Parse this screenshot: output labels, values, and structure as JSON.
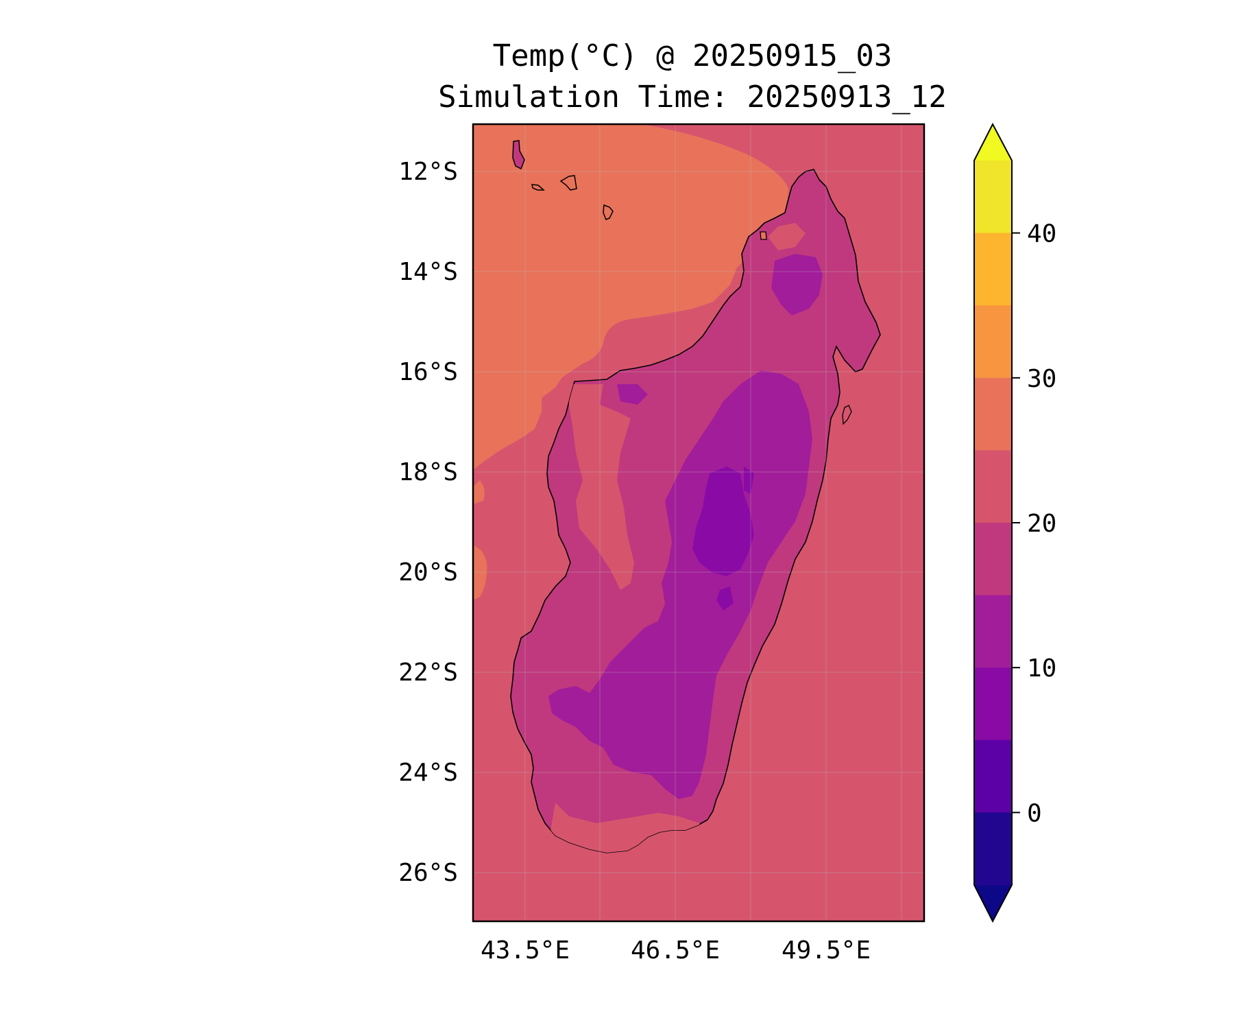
{
  "figure": {
    "title_line1": "Temp(°C) @ 20250915_03",
    "title_line2": "Simulation Time: 20250913_12"
  },
  "map": {
    "y_ticks": [
      "12°S",
      "14°S",
      "16°S",
      "18°S",
      "20°S",
      "22°S",
      "24°S",
      "26°S"
    ],
    "x_ticks": [
      "43.5°E",
      "46.5°E",
      "49.5°E"
    ],
    "ocean_color": "#d6556d",
    "warm_sea_color": "#e8735a",
    "land_colors": [
      "#c0397e",
      "#a21d9a",
      "#8a0aa5"
    ],
    "coastline_color": "#000000"
  },
  "colorbar": {
    "tick_labels": [
      "40",
      "30",
      "20",
      "10",
      "0"
    ],
    "extend": "both",
    "bins": [
      {
        "from": 40,
        "to": 45,
        "color": "#f0e52a"
      },
      {
        "from": 35,
        "to": 40,
        "color": "#fdb42f"
      },
      {
        "from": 30,
        "to": 35,
        "color": "#f89540"
      },
      {
        "from": 25,
        "to": 30,
        "color": "#e8735a"
      },
      {
        "from": 20,
        "to": 25,
        "color": "#d6556d"
      },
      {
        "from": 15,
        "to": 20,
        "color": "#c0397e"
      },
      {
        "from": 10,
        "to": 15,
        "color": "#a21d9a"
      },
      {
        "from": 5,
        "to": 10,
        "color": "#8a0aa5"
      },
      {
        "from": 0,
        "to": 5,
        "color": "#5c01a6"
      },
      {
        "from": -5,
        "to": 0,
        "color": "#220690"
      }
    ],
    "over_color": "#f0f921",
    "under_color": "#0d0887"
  }
}
